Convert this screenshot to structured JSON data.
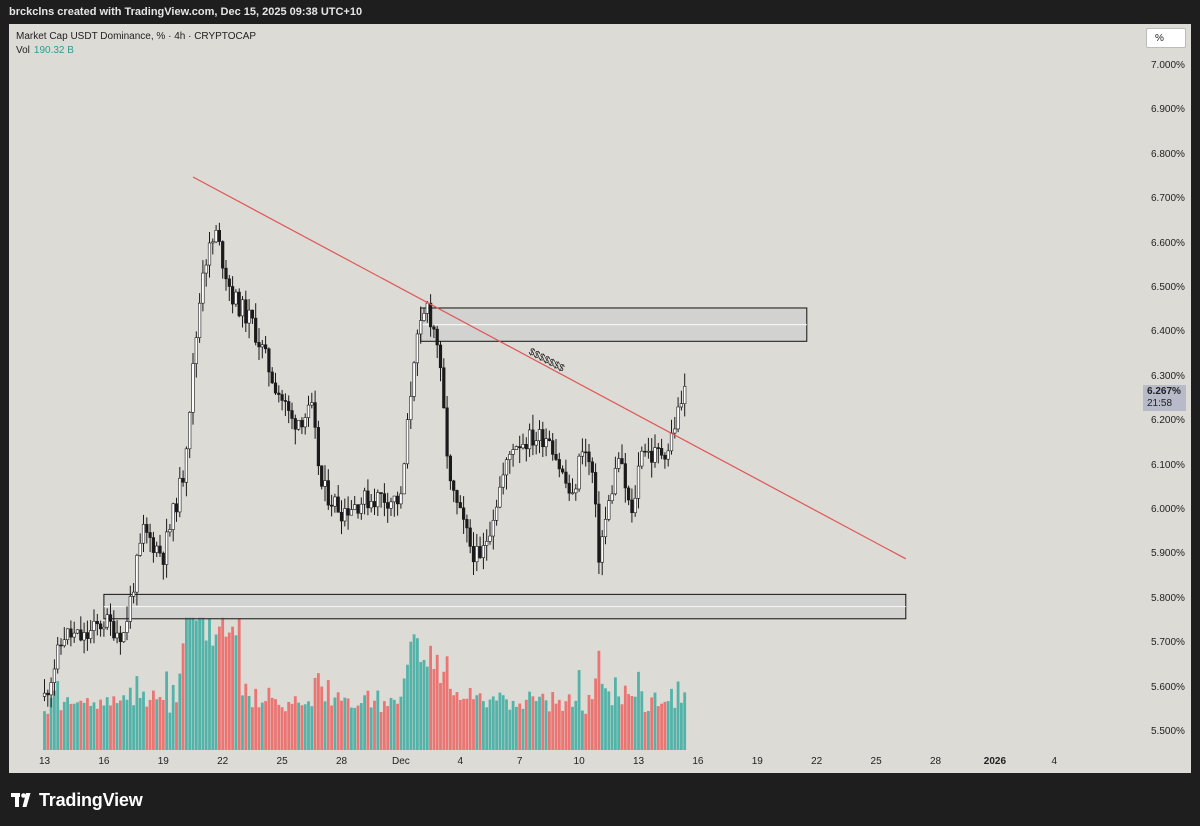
{
  "header": {
    "attribution": "brckclns created with TradingView.com, Dec 15, 2025 09:38 UTC+10"
  },
  "legend": {
    "symbol": "Market Cap USDT Dominance, % · 4h · CRYPTOCAP",
    "vol_label": "Vol",
    "vol_value": "190.32 B"
  },
  "scale_button": "%",
  "last_price": {
    "value": "6.267%",
    "countdown": "21:58"
  },
  "annotation": "$$$$$$$",
  "branding": "TradingView",
  "colors": {
    "up": "#26a69a",
    "down": "#ef5350",
    "candle": "#1a1a1a",
    "trendline": "#e05555",
    "background": "#dcdbd6"
  },
  "chart_data": {
    "type": "candlestick",
    "title": "Market Cap USDT Dominance, % · 4h · CRYPTOCAP",
    "ylim": [
      5.46,
      7.08
    ],
    "y_ticks": [
      "7.000%",
      "6.900%",
      "6.800%",
      "6.700%",
      "6.600%",
      "6.500%",
      "6.400%",
      "6.300%",
      "6.200%",
      "6.100%",
      "6.000%",
      "5.900%",
      "5.800%",
      "5.700%",
      "5.600%",
      "5.500%"
    ],
    "x_ticks": [
      "13",
      "16",
      "19",
      "22",
      "25",
      "28",
      "Dec",
      "4",
      "7",
      "10",
      "13",
      "16",
      "19",
      "22",
      "25",
      "28",
      "2026",
      "4"
    ],
    "price_path": [
      [
        "Nov 13 00:00",
        5.58
      ],
      [
        "Nov 14 00:00",
        5.72
      ],
      [
        "Nov 15 00:00",
        5.71
      ],
      [
        "Nov 16 00:00",
        5.75
      ],
      [
        "Nov 17 00:00",
        5.72
      ],
      [
        "Nov 18 00:00",
        5.95
      ],
      [
        "Nov 19 00:00",
        5.9
      ],
      [
        "Nov 20 00:00",
        6.08
      ],
      [
        "Nov 21 00:00",
        6.55
      ],
      [
        "Nov 21 16:00",
        6.62
      ],
      [
        "Nov 22 12:00",
        6.48
      ],
      [
        "Nov 23 12:00",
        6.42
      ],
      [
        "Nov 24 12:00",
        6.3
      ],
      [
        "Nov 25 12:00",
        6.2
      ],
      [
        "Nov 26 12:00",
        6.22
      ],
      [
        "Nov 27 00:00",
        6.05
      ],
      [
        "Nov 28 00:00",
        6.0
      ],
      [
        "Nov 29 00:00",
        6.02
      ],
      [
        "Nov 30 00:00",
        6.03
      ],
      [
        "Dec 1 00:00",
        6.02
      ],
      [
        "Dec 1 16:00",
        6.35
      ],
      [
        "Dec 2 08:00",
        6.46
      ],
      [
        "Dec 2 20:00",
        6.38
      ],
      [
        "Dec 3 12:00",
        6.05
      ],
      [
        "Dec 4 12:00",
        5.92
      ],
      [
        "Dec 5 00:00",
        5.88
      ],
      [
        "Dec 6 00:00",
        6.05
      ],
      [
        "Dec 6 16:00",
        6.15
      ],
      [
        "Dec 7 12:00",
        6.16
      ],
      [
        "Dec 8 12:00",
        6.17
      ],
      [
        "Dec 9 00:00",
        6.1
      ],
      [
        "Dec 9 16:00",
        6.02
      ],
      [
        "Dec 10 04:00",
        6.15
      ],
      [
        "Dec 10 16:00",
        6.08
      ],
      [
        "Dec 11 00:00",
        5.9
      ],
      [
        "Dec 11 16:00",
        6.05
      ],
      [
        "Dec 12 00:00",
        6.12
      ],
      [
        "Dec 12 16:00",
        5.98
      ],
      [
        "Dec 13 04:00",
        6.15
      ],
      [
        "Dec 13 16:00",
        6.12
      ],
      [
        "Dec 14 12:00",
        6.14
      ],
      [
        "Dec 15 00:00",
        6.22
      ],
      [
        "Dec 15 08:00",
        6.267
      ]
    ],
    "volume_range_B": [
      0,
      700
    ],
    "trendline": {
      "from": [
        "Nov 20 12:00",
        6.75
      ],
      "to": [
        "Dec 26 12:00",
        5.89
      ]
    },
    "zones": [
      {
        "from": "Dec 2 00:00",
        "to": "Dec 21 12:00",
        "top": 6.455,
        "bottom": 6.38
      },
      {
        "from": "Nov 16 00:00",
        "to": "Dec 26 12:00",
        "top": 5.81,
        "bottom": 5.755
      }
    ],
    "legend": "top-left",
    "grid": false
  }
}
